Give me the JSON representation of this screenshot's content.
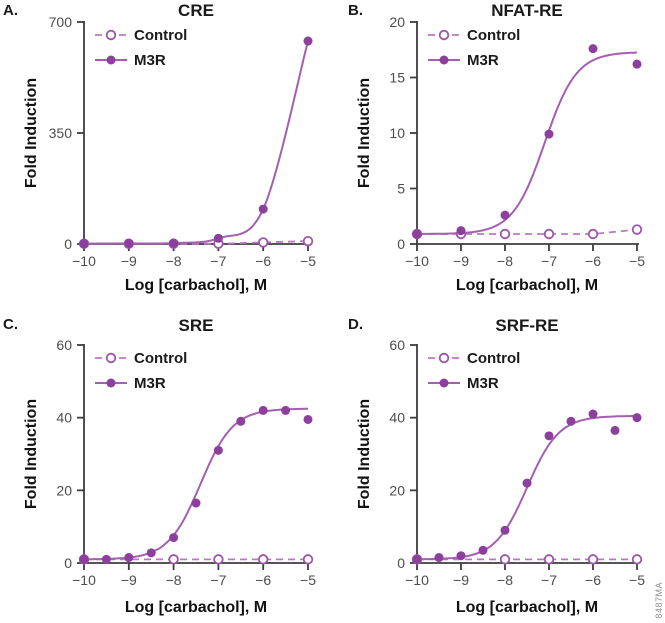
{
  "figure_id": "8487MA",
  "colors": {
    "m3r_marker": "#8d3f9d",
    "m3r_line": "#a35fb0",
    "control_marker_stroke": "#9c55aa",
    "control_line": "#b979c2",
    "axis": "#3d3d3d",
    "tick_label": "#4d4d4d",
    "text": "#1a1a1a",
    "watermark": "#8f8f8f"
  },
  "chart_data": [
    {
      "type": "line",
      "panel": "A.",
      "title": "CRE",
      "xlabel": "Log [carbachol], M",
      "ylabel": "Fold Induction",
      "xlim": [
        -10,
        -5
      ],
      "xticks": [
        -10,
        -9,
        -8,
        -7,
        -6,
        -5
      ],
      "ylim": [
        0,
        700
      ],
      "yticks": [
        0,
        350,
        700
      ],
      "grid": false,
      "legend_position": "inside-top-left",
      "series": [
        {
          "name": "Control",
          "role": "control",
          "line": "dashed",
          "marker": "open",
          "x": [
            -10,
            -9,
            -8,
            -7,
            -6,
            -5
          ],
          "y": [
            1,
            1,
            1,
            1,
            5,
            9
          ]
        },
        {
          "name": "M3R",
          "role": "m3r",
          "line": "solid",
          "marker": "filled",
          "curve": "spline",
          "x": [
            -10,
            -9,
            -8,
            -7,
            -6,
            -5
          ],
          "y": [
            1,
            2,
            3,
            18,
            110,
            640
          ]
        }
      ]
    },
    {
      "type": "line",
      "panel": "B.",
      "title": "NFAT-RE",
      "xlabel": "Log [carbachol], M",
      "ylabel": "Fold Induction",
      "xlim": [
        -10,
        -5
      ],
      "xticks": [
        -10,
        -9,
        -8,
        -7,
        -6,
        -5
      ],
      "ylim": [
        0,
        20
      ],
      "yticks": [
        0,
        5,
        10,
        15,
        20
      ],
      "grid": false,
      "legend_position": "inside-top-left",
      "series": [
        {
          "name": "Control",
          "role": "control",
          "line": "dashed",
          "marker": "open",
          "x": [
            -10,
            -9,
            -8,
            -7,
            -6,
            -5
          ],
          "y": [
            0.9,
            0.9,
            0.9,
            0.9,
            0.9,
            1.3
          ]
        },
        {
          "name": "M3R",
          "role": "m3r",
          "line": "solid",
          "marker": "filled",
          "x": [
            -10,
            -9,
            -8,
            -7,
            -6,
            -5
          ],
          "y": [
            0.9,
            1.2,
            2.6,
            9.9,
            17.6,
            16.2
          ],
          "fit": {
            "bottom": 0.9,
            "top": 17.3,
            "logEC50": -7.1,
            "hill": 1.2
          }
        }
      ]
    },
    {
      "type": "line",
      "panel": "C.",
      "title": "SRE",
      "xlabel": "Log [carbachol], M",
      "ylabel": "Fold Induction",
      "xlim": [
        -10,
        -5
      ],
      "xticks": [
        -10,
        -9,
        -8,
        -7,
        -6,
        -5
      ],
      "ylim": [
        0,
        60
      ],
      "yticks": [
        0,
        20,
        40,
        60
      ],
      "grid": false,
      "legend_position": "inside-top-left",
      "series": [
        {
          "name": "Control",
          "role": "control",
          "line": "dashed",
          "marker": "open",
          "x": [
            -10,
            -8,
            -7,
            -6,
            -5
          ],
          "y": [
            1,
            1,
            1,
            1,
            1
          ]
        },
        {
          "name": "M3R",
          "role": "m3r",
          "line": "solid",
          "marker": "filled",
          "x": [
            -10,
            -9.5,
            -9,
            -8.5,
            -8,
            -7.5,
            -7,
            -6.5,
            -6,
            -5.5,
            -5
          ],
          "y": [
            1,
            1,
            1.5,
            2.8,
            7,
            16.5,
            31,
            39,
            42,
            42,
            39.5
          ],
          "fit": {
            "bottom": 1,
            "top": 42.5,
            "logEC50": -7.4,
            "hill": 1.2
          }
        }
      ]
    },
    {
      "type": "line",
      "panel": "D.",
      "title": "SRF-RE",
      "xlabel": "Log [carbachol], M",
      "ylabel": "Fold Induction",
      "xlim": [
        -10,
        -5
      ],
      "xticks": [
        -10,
        -9,
        -8,
        -7,
        -6,
        -5
      ],
      "ylim": [
        0,
        60
      ],
      "yticks": [
        0,
        20,
        40,
        60
      ],
      "grid": false,
      "legend_position": "inside-top-left",
      "series": [
        {
          "name": "Control",
          "role": "control",
          "line": "dashed",
          "marker": "open",
          "x": [
            -10,
            -8,
            -7,
            -6,
            -5
          ],
          "y": [
            1,
            1,
            1,
            1,
            1
          ]
        },
        {
          "name": "M3R",
          "role": "m3r",
          "line": "solid",
          "marker": "filled",
          "x": [
            -10,
            -9.5,
            -9,
            -8.5,
            -8,
            -7.5,
            -7,
            -6.5,
            -6,
            -5.5,
            -5
          ],
          "y": [
            1,
            1.5,
            2,
            3.5,
            9,
            22,
            35,
            39,
            41,
            36.5,
            40
          ],
          "fit": {
            "bottom": 1,
            "top": 40.5,
            "logEC50": -7.5,
            "hill": 1.2
          }
        }
      ]
    }
  ]
}
